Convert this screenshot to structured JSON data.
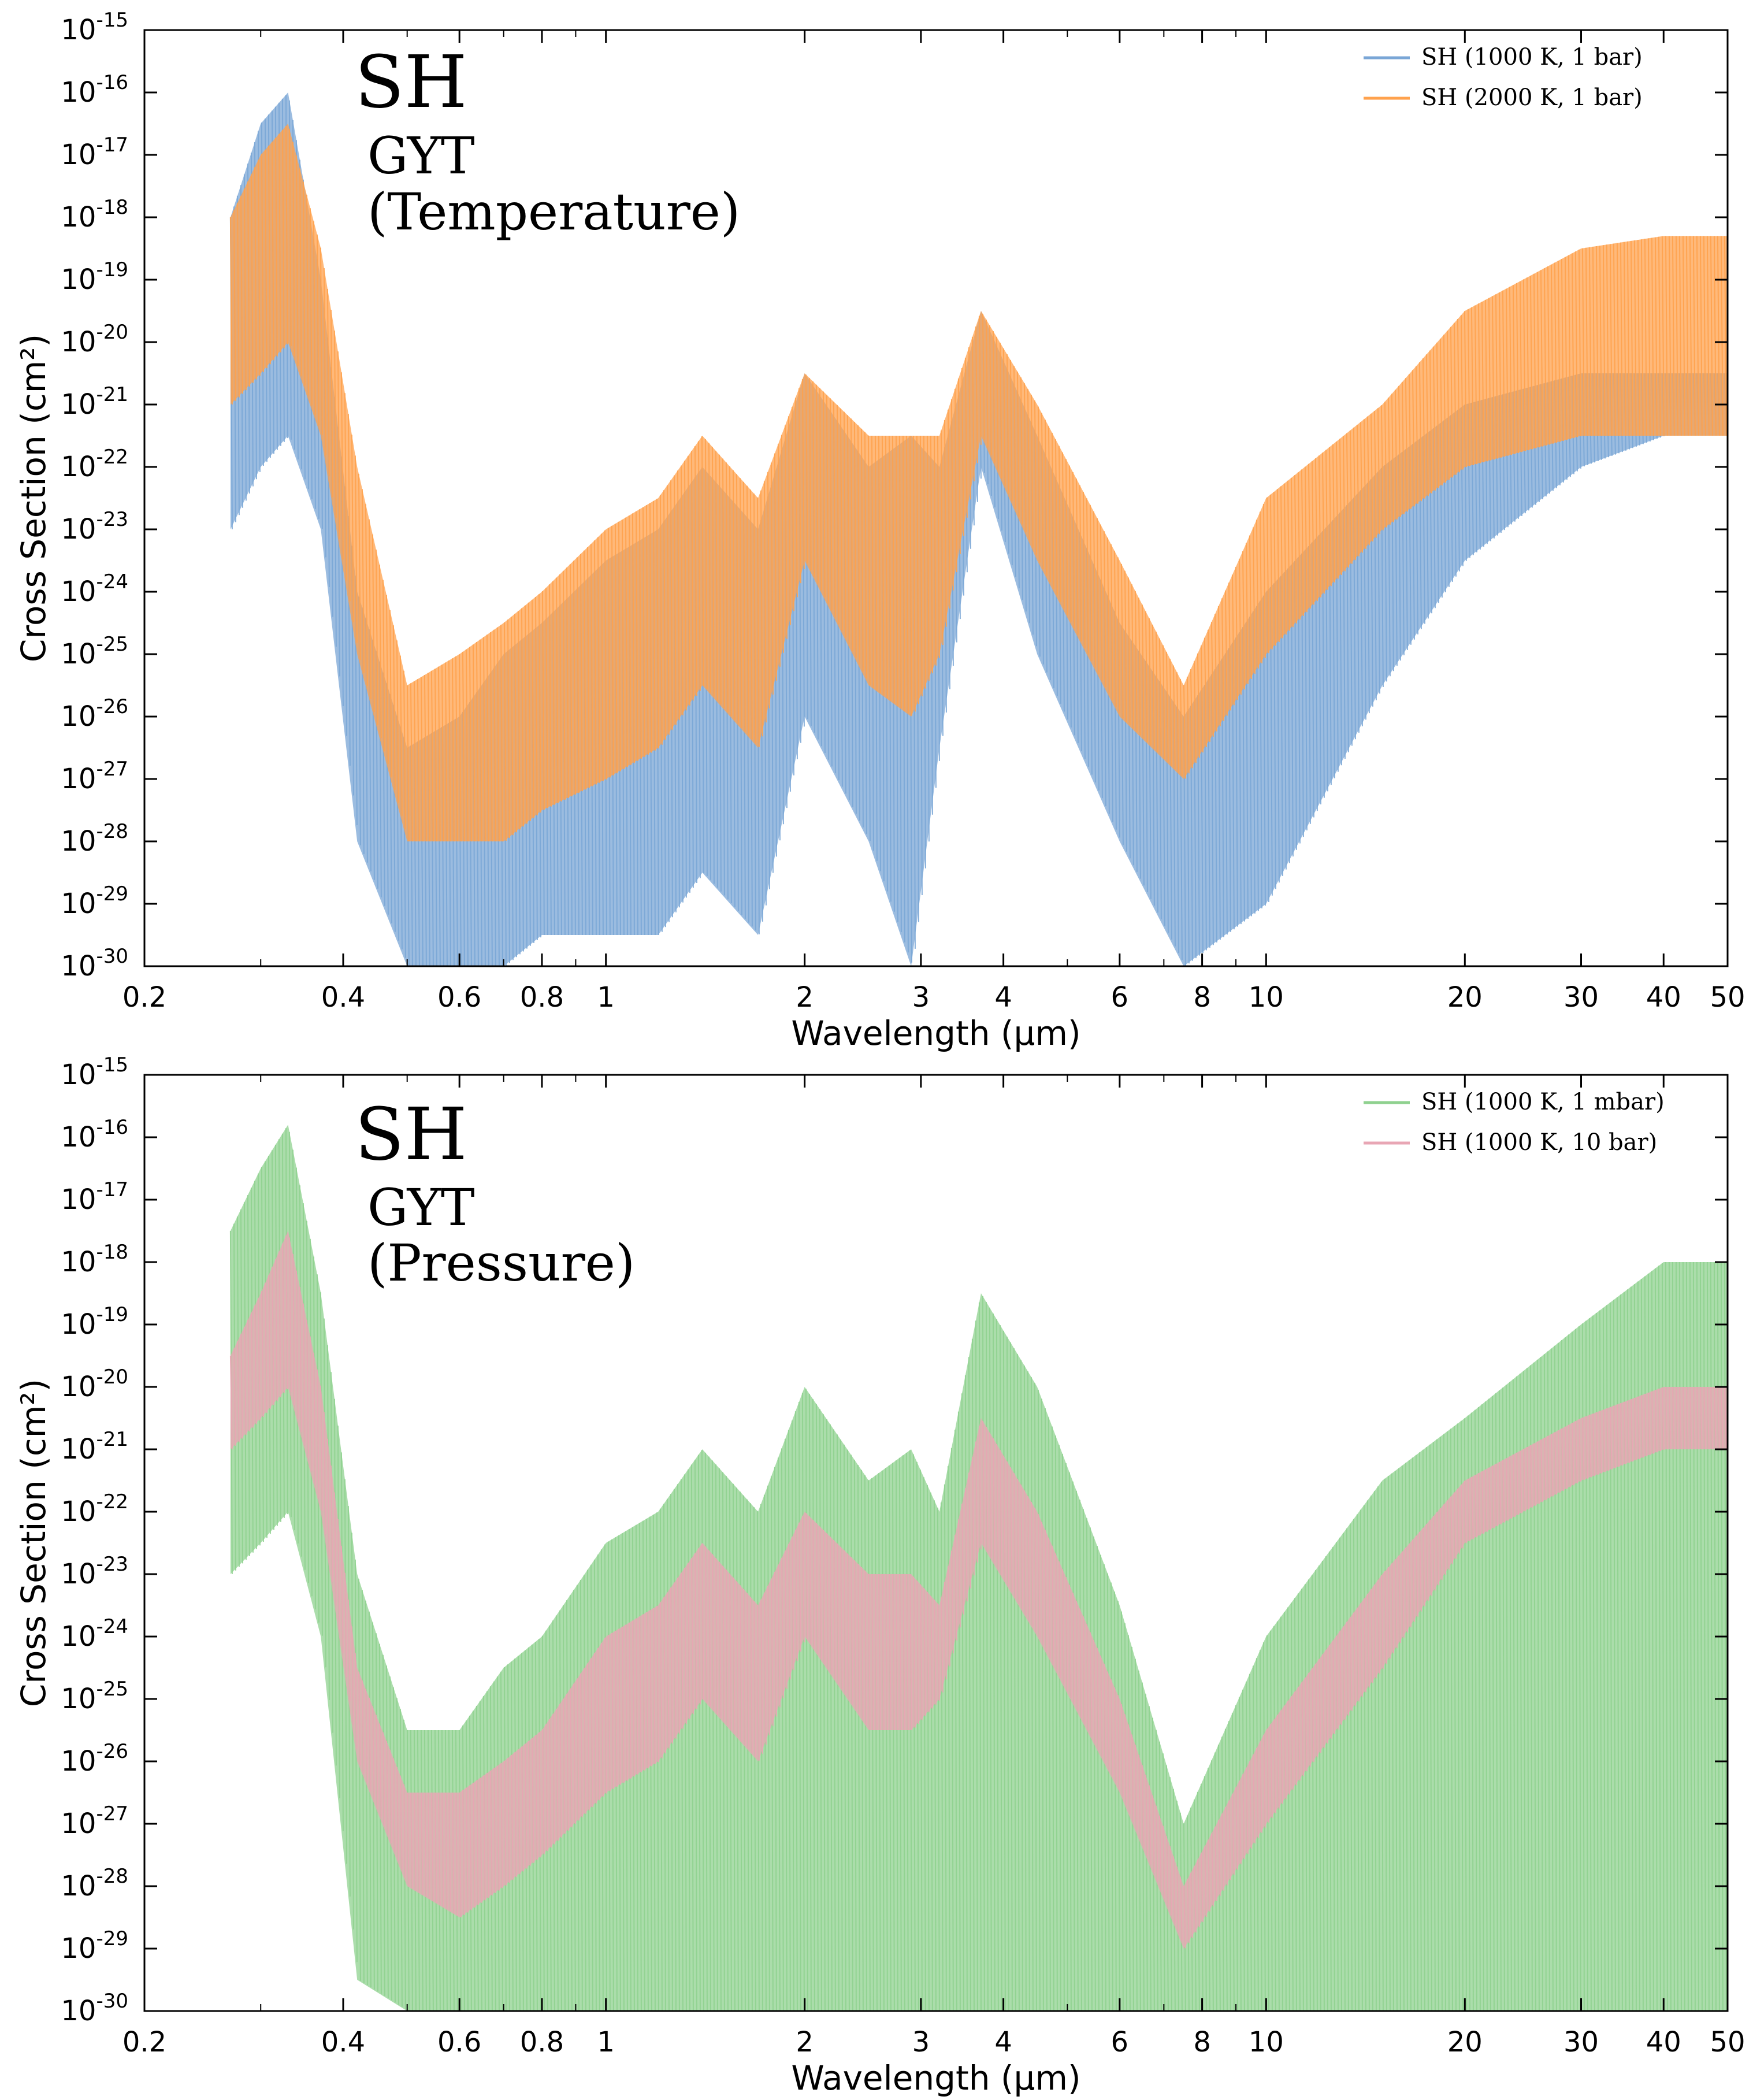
{
  "chart_data": [
    {
      "type": "line",
      "annotation": {
        "species": "SH",
        "line_list": "GYT",
        "note": "(Temperature)"
      },
      "xlabel": "Wavelength (μm)",
      "ylabel": "Cross Section (cm²)",
      "xscale": "log",
      "yscale": "log",
      "xlim": [
        0.2,
        50
      ],
      "ylim": [
        1e-30,
        1e-15
      ],
      "x_ticks": [
        0.2,
        0.4,
        0.6,
        0.8,
        1,
        2,
        3,
        4,
        6,
        8,
        10,
        20,
        30,
        40,
        50
      ],
      "x_tick_labels": [
        "0.2",
        "0.4",
        "0.6",
        "0.8",
        "1",
        "2",
        "3",
        "4",
        "6",
        "8",
        "10",
        "20",
        "30",
        "40",
        "50"
      ],
      "y_tick_exponents": [
        "-30",
        "-29",
        "-28",
        "-27",
        "-26",
        "-25",
        "-24",
        "-23",
        "-22",
        "-21",
        "-20",
        "-19",
        "-18",
        "-17",
        "-16",
        "-15"
      ],
      "y_tick_base": "10",
      "legend_position": "top-right",
      "series": [
        {
          "name": "SH (1000 K, 1 bar)",
          "color": "#7aa6d6",
          "x": [
            0.27,
            0.3,
            0.33,
            0.37,
            0.42,
            0.5,
            0.6,
            0.7,
            0.8,
            1.0,
            1.2,
            1.4,
            1.7,
            2.0,
            2.5,
            2.9,
            3.2,
            3.7,
            4.5,
            6.0,
            7.5,
            10,
            15,
            20,
            30,
            40,
            50
          ],
          "upper": [
            -18,
            -16.5,
            -16,
            -19,
            -24,
            -26.5,
            -26,
            -25,
            -24.5,
            -23.5,
            -23,
            -22,
            -23,
            -20.5,
            -22,
            -21.5,
            -22,
            -19.5,
            -21.5,
            -24.5,
            -26,
            -24,
            -22,
            -21,
            -20.5,
            -20.5,
            -20.5
          ],
          "lower": [
            -23,
            -22,
            -21.5,
            -23,
            -28,
            -30,
            -30,
            -30,
            -29.5,
            -29.5,
            -29.5,
            -28.5,
            -29.5,
            -26,
            -28,
            -30,
            -26.5,
            -22,
            -25,
            -28,
            -30,
            -29,
            -25.5,
            -23.5,
            -22,
            -21.5,
            -21.5
          ]
        },
        {
          "name": "SH (2000 K, 1 bar)",
          "color": "#ffa24d",
          "x": [
            0.27,
            0.3,
            0.33,
            0.37,
            0.42,
            0.5,
            0.6,
            0.7,
            0.8,
            1.0,
            1.2,
            1.4,
            1.7,
            2.0,
            2.5,
            2.9,
            3.2,
            3.7,
            4.5,
            6.0,
            7.5,
            10,
            15,
            20,
            30,
            40,
            50
          ],
          "upper": [
            -18,
            -17,
            -16.5,
            -18.5,
            -22,
            -25.5,
            -25,
            -24.5,
            -24,
            -23,
            -22.5,
            -21.5,
            -22.5,
            -20.5,
            -21.5,
            -21.5,
            -21.5,
            -19.5,
            -21,
            -23.5,
            -25.5,
            -22.5,
            -21,
            -19.5,
            -18.5,
            -18.3,
            -18.3
          ],
          "lower": [
            -21,
            -20.5,
            -20,
            -21.5,
            -25,
            -28,
            -28,
            -28,
            -27.5,
            -27,
            -26.5,
            -25.5,
            -26.5,
            -23.5,
            -25.5,
            -26,
            -25,
            -21.5,
            -23.5,
            -26,
            -27,
            -25,
            -23,
            -22,
            -21.5,
            -21.5,
            -21.5
          ]
        }
      ]
    },
    {
      "type": "line",
      "annotation": {
        "species": "SH",
        "line_list": "GYT",
        "note": "(Pressure)"
      },
      "xlabel": "Wavelength (μm)",
      "ylabel": "Cross Section (cm²)",
      "xscale": "log",
      "yscale": "log",
      "xlim": [
        0.2,
        50
      ],
      "ylim": [
        1e-30,
        1e-15
      ],
      "x_ticks": [
        0.2,
        0.4,
        0.6,
        0.8,
        1,
        2,
        3,
        4,
        6,
        8,
        10,
        20,
        30,
        40,
        50
      ],
      "x_tick_labels": [
        "0.2",
        "0.4",
        "0.6",
        "0.8",
        "1",
        "2",
        "3",
        "4",
        "6",
        "8",
        "10",
        "20",
        "30",
        "40",
        "50"
      ],
      "y_tick_exponents": [
        "-30",
        "-29",
        "-28",
        "-27",
        "-26",
        "-25",
        "-24",
        "-23",
        "-22",
        "-21",
        "-20",
        "-19",
        "-18",
        "-17",
        "-16",
        "-15"
      ],
      "y_tick_base": "10",
      "legend_position": "top-right",
      "series": [
        {
          "name": "SH (1000 K, 1 mbar)",
          "color": "#8fd18f",
          "x": [
            0.27,
            0.3,
            0.33,
            0.37,
            0.42,
            0.5,
            0.6,
            0.7,
            0.8,
            1.0,
            1.2,
            1.4,
            1.7,
            2.0,
            2.5,
            2.9,
            3.2,
            3.7,
            4.5,
            6.0,
            7.5,
            10,
            15,
            20,
            30,
            40,
            50
          ],
          "upper": [
            -17.5,
            -16.5,
            -15.8,
            -18.5,
            -23,
            -25.5,
            -25.5,
            -24.5,
            -24,
            -22.5,
            -22,
            -21,
            -22,
            -20,
            -21.5,
            -21,
            -22,
            -18.5,
            -20,
            -23.5,
            -27,
            -24,
            -21.5,
            -20.5,
            -19,
            -18,
            -18
          ],
          "lower": [
            -23,
            -22.5,
            -22,
            -24,
            -29.5,
            -30,
            -30,
            -30,
            -30,
            -30,
            -30,
            -30,
            -30,
            -30,
            -30,
            -30,
            -30,
            -30,
            -30,
            -30,
            -30,
            -30,
            -30,
            -30,
            -30,
            -30,
            -30
          ]
        },
        {
          "name": "SH (1000 K, 10 bar)",
          "color": "#e8a6b4",
          "x": [
            0.27,
            0.3,
            0.33,
            0.37,
            0.42,
            0.5,
            0.6,
            0.7,
            0.8,
            1.0,
            1.2,
            1.4,
            1.7,
            2.0,
            2.5,
            2.9,
            3.2,
            3.7,
            4.5,
            6.0,
            7.5,
            10,
            15,
            20,
            30,
            40,
            50
          ],
          "upper": [
            -19.5,
            -18.5,
            -17.5,
            -20,
            -24.5,
            -26.5,
            -26.5,
            -26,
            -25.5,
            -24,
            -23.5,
            -22.5,
            -23.5,
            -22,
            -23,
            -23,
            -23.5,
            -20.5,
            -22,
            -25,
            -28,
            -25.5,
            -23,
            -21.5,
            -20.5,
            -20,
            -20
          ],
          "lower": [
            -21,
            -20.5,
            -20,
            -22,
            -26,
            -28,
            -28.5,
            -28,
            -27.5,
            -26.5,
            -26,
            -25,
            -26,
            -24,
            -25.5,
            -25.5,
            -25,
            -22.5,
            -24,
            -26.5,
            -29,
            -27,
            -24.5,
            -22.5,
            -21.5,
            -21,
            -21
          ]
        }
      ]
    }
  ]
}
